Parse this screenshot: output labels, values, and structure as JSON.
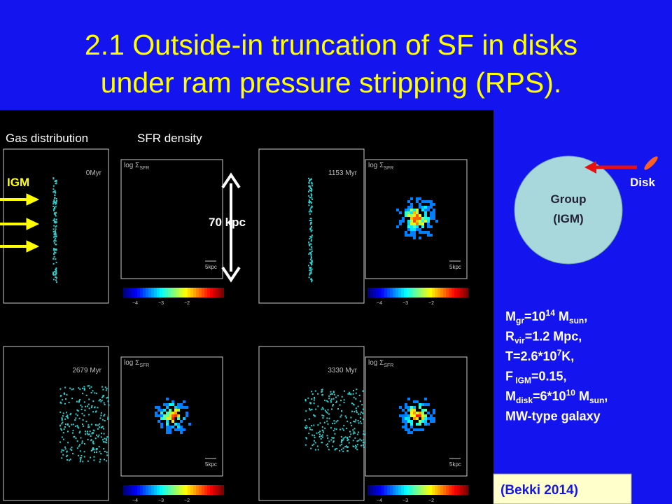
{
  "title": {
    "lines": [
      "2.1 Outside-in truncation of SF in disks",
      "under ram pressure stripping (RPS)."
    ]
  },
  "figure": {
    "column_labels": [
      "Gas distribution",
      "SFR density"
    ],
    "igm_label": "IGM",
    "scale_label": "70  kpc",
    "snapshots": [
      {
        "time": "0Myr",
        "sfr_label": "log Σ",
        "sfr_sub": "SFR",
        "scale_bar": "5kpc"
      },
      {
        "time": "1153 Myr",
        "sfr_label": "log Σ",
        "sfr_sub": "SFR",
        "scale_bar": "5kpc"
      },
      {
        "time": "2679 Myr",
        "sfr_label": "log Σ",
        "sfr_sub": "SFR",
        "scale_bar": "5kpc"
      },
      {
        "time": "3330 Myr",
        "sfr_label": "log Σ",
        "sfr_sub": "SFR",
        "scale_bar": "5kpc"
      }
    ],
    "colorbar_ticks": [
      "−4",
      "−3",
      "−2"
    ]
  },
  "diagram": {
    "group_label": [
      "Group",
      "(IGM)"
    ],
    "disk_label": "Disk"
  },
  "parameters": [
    [
      {
        "t": "M"
      },
      {
        "t": "gr",
        "s": "sub"
      },
      {
        "t": "=10"
      },
      {
        "t": "14",
        "s": "sup"
      },
      {
        "t": " M"
      },
      {
        "t": "sun",
        "s": "sub"
      },
      {
        "t": ","
      }
    ],
    [
      {
        "t": "R"
      },
      {
        "t": "vir",
        "s": "sub"
      },
      {
        "t": "=1.2 Mpc,"
      }
    ],
    [
      {
        "t": "T=2.6*10"
      },
      {
        "t": "7",
        "s": "sup"
      },
      {
        "t": "K,"
      }
    ],
    [
      {
        "t": "F"
      },
      {
        "t": " IGM",
        "s": "sub"
      },
      {
        "t": "=0.15,"
      }
    ],
    [
      {
        "t": "M"
      },
      {
        "t": "disk",
        "s": "sub"
      },
      {
        "t": "=6*10"
      },
      {
        "t": "10",
        "s": "sup"
      },
      {
        "t": " M"
      },
      {
        "t": "sun",
        "s": "sub"
      },
      {
        "t": ","
      }
    ],
    [
      {
        "t": "MW-type galaxy"
      }
    ]
  ],
  "citation": "(Bekki 2014)"
}
